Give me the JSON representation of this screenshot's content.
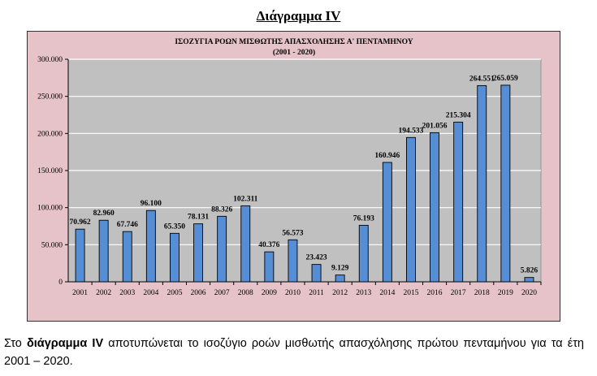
{
  "heading": "Διάγραμμα IV",
  "chart_data": {
    "type": "bar",
    "title": "ΙΣΟΖΥΓΙΑ ΡΟΩΝ ΜΙΣΘΩΤΗΣ ΑΠΑΣΧΟΛΗΣΗΣ Α' ΠΕΝΤΑΜΗΝΟΥ",
    "subtitle": "(2001 - 2020)",
    "categories": [
      "2001",
      "2002",
      "2003",
      "2004",
      "2005",
      "2006",
      "2007",
      "2008",
      "2009",
      "2010",
      "2011",
      "2012",
      "2013",
      "2014",
      "2015",
      "2016",
      "2017",
      "2018",
      "2019",
      "2020"
    ],
    "values": [
      70962,
      82960,
      67746,
      96100,
      65350,
      78131,
      88326,
      102311,
      40376,
      56573,
      23423,
      9129,
      76193,
      160946,
      194533,
      201056,
      215304,
      264551,
      265059,
      5826
    ],
    "data_labels": [
      "70.962",
      "82.960",
      "67.746",
      "96.100",
      "65.350",
      "78.131",
      "88.326",
      "102.311",
      "40.376",
      "56.573",
      "23.423",
      "9.129",
      "76.193",
      "160.946",
      "194.533",
      "201.056",
      "215.304",
      "264.551",
      "265.059",
      "5.826"
    ],
    "yticks": [
      "0",
      "50.000",
      "100.000",
      "150.000",
      "200.000",
      "250.000",
      "300.000"
    ],
    "ylim": [
      0,
      300000
    ],
    "grid": true,
    "colors": {
      "bar": "#558ed5",
      "plot_bg": "#c0c0c0",
      "chart_bg": "#e6c3c8"
    }
  },
  "caption": {
    "prefix": "Στο ",
    "bold": "διάγραμμα IV",
    "rest": " αποτυπώνεται το ισοζύγιο ροών μισθωτής απασχόλησης πρώτου πενταμήνου για τα έτη 2001 – 2020."
  }
}
